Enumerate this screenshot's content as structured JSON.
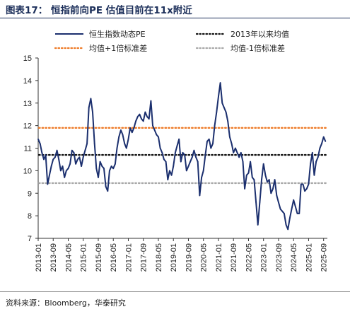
{
  "header": {
    "title": "图表17：  恒指前向PE 估值目前在11x附近"
  },
  "footer": {
    "source": "资料来源：Bloomberg，华泰研究"
  },
  "chart_data": {
    "type": "line",
    "title": "图表17：  恒指前向PE 估值目前在11x附近",
    "ylim": [
      7,
      15
    ],
    "yticks": [
      7,
      8,
      9,
      10,
      11,
      12,
      13,
      14,
      15
    ],
    "xlim": [
      "2013-01",
      "2025-11"
    ],
    "xticks": [
      "2013-01",
      "2013-09",
      "2014-05",
      "2015-01",
      "2015-09",
      "2016-05",
      "2017-01",
      "2017-09",
      "2018-05",
      "2019-01",
      "2019-09",
      "2020-05",
      "2021-01",
      "2021-09",
      "2022-05",
      "2023-01",
      "2023-09",
      "2024-05",
      "2025-01",
      "2025-09"
    ],
    "grid": false,
    "legend_position": "top",
    "series": [
      {
        "name": "恒生指数动态PE",
        "style": "solid",
        "color": "#1b2f6e",
        "points": [
          [
            "2013-01",
            11.4
          ],
          [
            "2013-02",
            11.2
          ],
          [
            "2013-03",
            10.8
          ],
          [
            "2013-04",
            10.5
          ],
          [
            "2013-05",
            10.7
          ],
          [
            "2013-06",
            9.4
          ],
          [
            "2013-07",
            9.8
          ],
          [
            "2013-08",
            10.2
          ],
          [
            "2013-09",
            10.5
          ],
          [
            "2013-10",
            10.6
          ],
          [
            "2013-11",
            10.9
          ],
          [
            "2013-12",
            10.5
          ],
          [
            "2014-01",
            10.0
          ],
          [
            "2014-02",
            10.2
          ],
          [
            "2014-03",
            9.7
          ],
          [
            "2014-04",
            10.0
          ],
          [
            "2014-05",
            10.1
          ],
          [
            "2014-06",
            10.3
          ],
          [
            "2014-07",
            10.9
          ],
          [
            "2014-08",
            10.8
          ],
          [
            "2014-09",
            10.3
          ],
          [
            "2014-10",
            10.5
          ],
          [
            "2014-11",
            10.6
          ],
          [
            "2014-12",
            10.2
          ],
          [
            "2015-01",
            10.6
          ],
          [
            "2015-02",
            10.9
          ],
          [
            "2015-03",
            11.2
          ],
          [
            "2015-04",
            12.8
          ],
          [
            "2015-05",
            13.2
          ],
          [
            "2015-06",
            12.6
          ],
          [
            "2015-07",
            11.2
          ],
          [
            "2015-08",
            10.1
          ],
          [
            "2015-09",
            9.7
          ],
          [
            "2015-10",
            10.4
          ],
          [
            "2015-11",
            10.2
          ],
          [
            "2015-12",
            10.1
          ],
          [
            "2016-01",
            9.3
          ],
          [
            "2016-02",
            9.1
          ],
          [
            "2016-03",
            10.0
          ],
          [
            "2016-04",
            10.2
          ],
          [
            "2016-05",
            10.1
          ],
          [
            "2016-06",
            10.3
          ],
          [
            "2016-07",
            11.0
          ],
          [
            "2016-08",
            11.5
          ],
          [
            "2016-09",
            11.8
          ],
          [
            "2016-10",
            11.6
          ],
          [
            "2016-11",
            11.2
          ],
          [
            "2016-12",
            11.0
          ],
          [
            "2017-01",
            11.4
          ],
          [
            "2017-02",
            11.9
          ],
          [
            "2017-03",
            11.7
          ],
          [
            "2017-04",
            11.9
          ],
          [
            "2017-05",
            12.2
          ],
          [
            "2017-06",
            12.4
          ],
          [
            "2017-07",
            12.5
          ],
          [
            "2017-08",
            12.3
          ],
          [
            "2017-09",
            12.2
          ],
          [
            "2017-10",
            12.6
          ],
          [
            "2017-11",
            12.4
          ],
          [
            "2017-12",
            12.3
          ],
          [
            "2018-01",
            13.1
          ],
          [
            "2018-02",
            12.0
          ],
          [
            "2018-03",
            11.8
          ],
          [
            "2018-04",
            11.6
          ],
          [
            "2018-05",
            11.5
          ],
          [
            "2018-06",
            11.0
          ],
          [
            "2018-07",
            10.8
          ],
          [
            "2018-08",
            10.5
          ],
          [
            "2018-09",
            10.4
          ],
          [
            "2018-10",
            9.6
          ],
          [
            "2018-11",
            10.0
          ],
          [
            "2018-12",
            9.8
          ],
          [
            "2019-01",
            10.2
          ],
          [
            "2019-02",
            10.8
          ],
          [
            "2019-03",
            11.1
          ],
          [
            "2019-04",
            11.4
          ],
          [
            "2019-05",
            10.4
          ],
          [
            "2019-06",
            10.8
          ],
          [
            "2019-07",
            10.7
          ],
          [
            "2019-08",
            10.0
          ],
          [
            "2019-09",
            10.2
          ],
          [
            "2019-10",
            10.4
          ],
          [
            "2019-11",
            10.6
          ],
          [
            "2019-12",
            10.9
          ],
          [
            "2020-01",
            10.6
          ],
          [
            "2020-02",
            10.4
          ],
          [
            "2020-03",
            8.9
          ],
          [
            "2020-04",
            9.7
          ],
          [
            "2020-05",
            10.0
          ],
          [
            "2020-06",
            10.7
          ],
          [
            "2020-07",
            11.3
          ],
          [
            "2020-08",
            11.4
          ],
          [
            "2020-09",
            11.0
          ],
          [
            "2020-10",
            11.2
          ],
          [
            "2020-11",
            12.0
          ],
          [
            "2020-12",
            12.6
          ],
          [
            "2021-01",
            13.3
          ],
          [
            "2021-02",
            13.9
          ],
          [
            "2021-03",
            13.0
          ],
          [
            "2021-04",
            12.8
          ],
          [
            "2021-05",
            12.6
          ],
          [
            "2021-06",
            12.2
          ],
          [
            "2021-07",
            11.5
          ],
          [
            "2021-08",
            11.2
          ],
          [
            "2021-09",
            10.8
          ],
          [
            "2021-10",
            11.0
          ],
          [
            "2021-11",
            10.8
          ],
          [
            "2021-12",
            10.6
          ],
          [
            "2022-01",
            10.8
          ],
          [
            "2022-02",
            10.4
          ],
          [
            "2022-03",
            9.2
          ],
          [
            "2022-04",
            9.8
          ],
          [
            "2022-05",
            9.9
          ],
          [
            "2022-06",
            10.4
          ],
          [
            "2022-07",
            9.7
          ],
          [
            "2022-08",
            9.6
          ],
          [
            "2022-09",
            8.6
          ],
          [
            "2022-10",
            7.6
          ],
          [
            "2022-11",
            8.6
          ],
          [
            "2022-12",
            9.6
          ],
          [
            "2023-01",
            10.3
          ],
          [
            "2023-02",
            9.8
          ],
          [
            "2023-03",
            9.5
          ],
          [
            "2023-04",
            9.6
          ],
          [
            "2023-05",
            9.0
          ],
          [
            "2023-06",
            9.2
          ],
          [
            "2023-07",
            9.6
          ],
          [
            "2023-08",
            8.9
          ],
          [
            "2023-09",
            8.6
          ],
          [
            "2023-10",
            8.3
          ],
          [
            "2023-11",
            8.2
          ],
          [
            "2023-12",
            8.1
          ],
          [
            "2024-01",
            7.6
          ],
          [
            "2024-02",
            7.4
          ],
          [
            "2024-03",
            7.9
          ],
          [
            "2024-04",
            8.3
          ],
          [
            "2024-05",
            8.7
          ],
          [
            "2024-06",
            8.4
          ],
          [
            "2024-07",
            8.1
          ],
          [
            "2024-08",
            8.1
          ],
          [
            "2024-09",
            9.4
          ],
          [
            "2024-10",
            9.4
          ],
          [
            "2024-11",
            9.1
          ],
          [
            "2024-12",
            9.2
          ],
          [
            "2025-01",
            9.4
          ],
          [
            "2025-02",
            10.3
          ],
          [
            "2025-03",
            10.8
          ],
          [
            "2025-04",
            9.8
          ],
          [
            "2025-05",
            10.4
          ],
          [
            "2025-06",
            10.6
          ],
          [
            "2025-07",
            11.0
          ],
          [
            "2025-08",
            11.2
          ],
          [
            "2025-09",
            11.5
          ],
          [
            "2025-10",
            11.3
          ]
        ]
      },
      {
        "name": "2013年以来均值",
        "style": "dotted",
        "color": "#111111",
        "value": 10.7
      },
      {
        "name": "均值+1倍标准差",
        "style": "dotted",
        "color": "#ee7a26",
        "value": 11.9
      },
      {
        "name": "均值-1倍标准差",
        "style": "dotted",
        "color": "#a8a8a8",
        "value": 9.45
      }
    ]
  }
}
